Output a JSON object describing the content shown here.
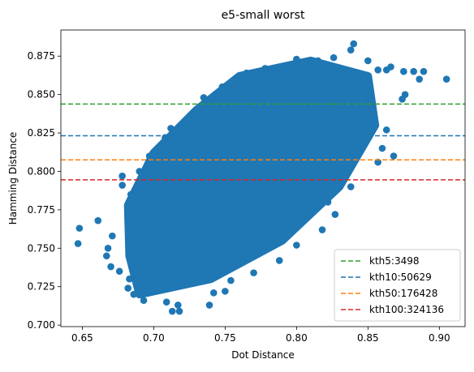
{
  "chart_data": {
    "type": "scatter",
    "title": "e5-small worst",
    "xlabel": "Dot Distance",
    "ylabel": "Hamming Distance",
    "xlim": [
      0.635,
      0.918
    ],
    "ylim": [
      0.699,
      0.892
    ],
    "xticks": [
      0.65,
      0.7,
      0.75,
      0.8,
      0.85,
      0.9
    ],
    "xtick_labels": [
      "0.65",
      "0.70",
      "0.75",
      "0.80",
      "0.85",
      "0.90"
    ],
    "yticks": [
      0.7,
      0.725,
      0.75,
      0.775,
      0.8,
      0.825,
      0.85,
      0.875
    ],
    "ytick_labels": [
      "0.700",
      "0.725",
      "0.750",
      "0.775",
      "0.800",
      "0.825",
      "0.850",
      "0.875"
    ],
    "grid": false,
    "legend_position": "lower-right",
    "marker_color": "#1f77b4",
    "series": [
      {
        "points": [
          [
            0.648,
            0.763
          ],
          [
            0.647,
            0.753
          ],
          [
            0.661,
            0.768
          ],
          [
            0.671,
            0.758
          ],
          [
            0.668,
            0.75
          ],
          [
            0.667,
            0.745
          ],
          [
            0.67,
            0.738
          ],
          [
            0.676,
            0.735
          ],
          [
            0.683,
            0.73
          ],
          [
            0.682,
            0.724
          ],
          [
            0.686,
            0.72
          ],
          [
            0.695,
            0.726
          ],
          [
            0.693,
            0.716
          ],
          [
            0.709,
            0.715
          ],
          [
            0.717,
            0.713
          ],
          [
            0.713,
            0.709
          ],
          [
            0.718,
            0.709
          ],
          [
            0.739,
            0.713
          ],
          [
            0.678,
            0.791
          ],
          [
            0.678,
            0.797
          ],
          [
            0.684,
            0.785
          ],
          [
            0.69,
            0.8
          ],
          [
            0.697,
            0.81
          ],
          [
            0.708,
            0.822
          ],
          [
            0.712,
            0.828
          ],
          [
            0.715,
            0.825
          ],
          [
            0.735,
            0.848
          ],
          [
            0.744,
            0.85
          ],
          [
            0.748,
            0.855
          ],
          [
            0.757,
            0.86
          ],
          [
            0.765,
            0.864
          ],
          [
            0.778,
            0.867
          ],
          [
            0.785,
            0.867
          ],
          [
            0.8,
            0.873
          ],
          [
            0.805,
            0.871
          ],
          [
            0.815,
            0.872
          ],
          [
            0.826,
            0.874
          ],
          [
            0.838,
            0.879
          ],
          [
            0.84,
            0.883
          ],
          [
            0.85,
            0.872
          ],
          [
            0.857,
            0.866
          ],
          [
            0.863,
            0.866
          ],
          [
            0.866,
            0.868
          ],
          [
            0.875,
            0.865
          ],
          [
            0.882,
            0.865
          ],
          [
            0.889,
            0.865
          ],
          [
            0.886,
            0.86
          ],
          [
            0.874,
            0.847
          ],
          [
            0.876,
            0.85
          ],
          [
            0.863,
            0.827
          ],
          [
            0.86,
            0.815
          ],
          [
            0.868,
            0.81
          ],
          [
            0.857,
            0.806
          ],
          [
            0.838,
            0.79
          ],
          [
            0.822,
            0.78
          ],
          [
            0.827,
            0.772
          ],
          [
            0.818,
            0.762
          ],
          [
            0.8,
            0.752
          ],
          [
            0.788,
            0.742
          ],
          [
            0.77,
            0.734
          ],
          [
            0.754,
            0.729
          ],
          [
            0.75,
            0.722
          ],
          [
            0.742,
            0.721
          ],
          [
            0.905,
            0.86
          ]
        ]
      }
    ],
    "cloud_center": [
      0.77,
      0.79
    ],
    "cloud_slope": 0.68,
    "hlines": [
      {
        "name": "kth5:3498",
        "y": 0.8438,
        "color": "#2ca02c"
      },
      {
        "name": "kth10:50629",
        "y": 0.8232,
        "color": "#1f77b4"
      },
      {
        "name": "kth50:176428",
        "y": 0.8075,
        "color": "#ff7f0e"
      },
      {
        "name": "kth100:324136",
        "y": 0.7945,
        "color": "#d62728"
      }
    ]
  }
}
